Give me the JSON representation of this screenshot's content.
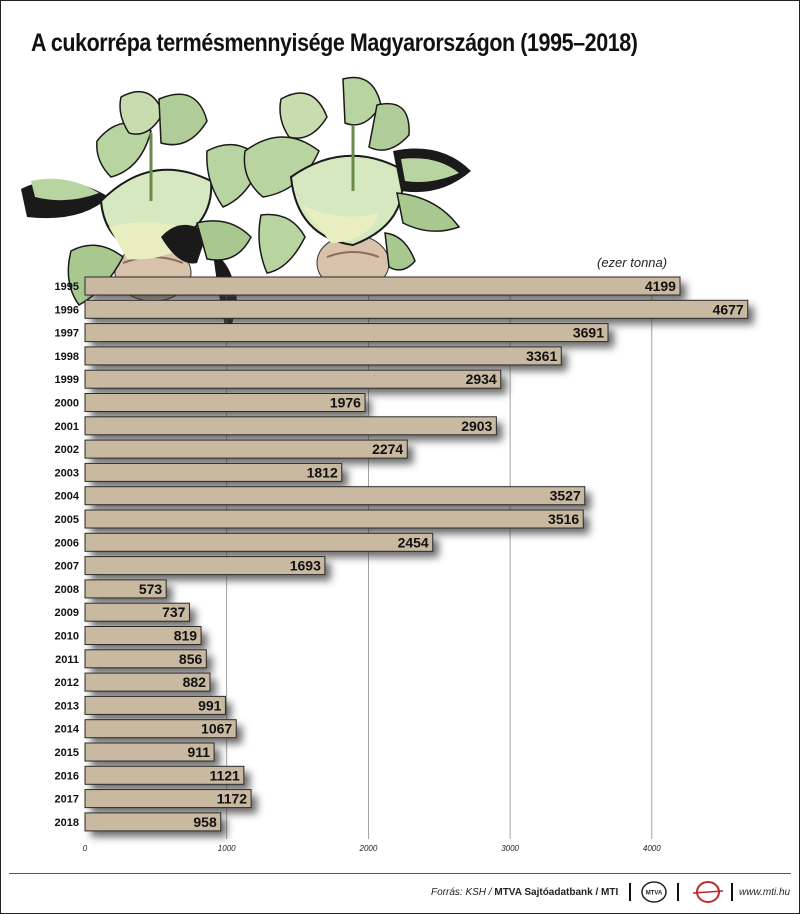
{
  "title": "A cukorrépa termésmennyisége Magyarországon (1995–2018)",
  "unit_label": "(ezer tonna)",
  "chart_data": {
    "type": "bar",
    "orientation": "horizontal",
    "title": "A cukorrépa termésmennyisége Magyarországon (1995–2018)",
    "unit": "(ezer tonna)",
    "categories": [
      "1995",
      "1996",
      "1997",
      "1998",
      "1999",
      "2000",
      "2001",
      "2002",
      "2003",
      "2004",
      "2005",
      "2006",
      "2007",
      "2008",
      "2009",
      "2010",
      "2011",
      "2012",
      "2013",
      "2014",
      "2015",
      "2016",
      "2017",
      "2018"
    ],
    "values": [
      4199,
      4677,
      3691,
      3361,
      2934,
      1976,
      2903,
      2274,
      1812,
      3527,
      3516,
      2454,
      1693,
      573,
      737,
      819,
      856,
      882,
      991,
      1067,
      911,
      1121,
      1172,
      958
    ],
    "xlim": [
      0,
      4700
    ],
    "xticks": [
      0,
      1000,
      2000,
      3000,
      4000
    ],
    "grid": true,
    "colors": {
      "bar": "#c9b9a0",
      "bar_stroke": "#2a2a2a",
      "shadow": "#3a3a3a",
      "grid": "#8a8a8a"
    }
  },
  "footer": {
    "source_label": "Forrás: KSH / ",
    "source_bold": "MTVA Sajtóadatbank",
    "source_tail": " / MTI",
    "logo1_text": "MTVA",
    "website": "www.mti.hu"
  },
  "illustration": {
    "icon": "sugar-beet-illustration",
    "leaf_color": "#b8d4a0",
    "leaf_dark": "#1a1a1a",
    "root_color": "#d8c2ac"
  }
}
